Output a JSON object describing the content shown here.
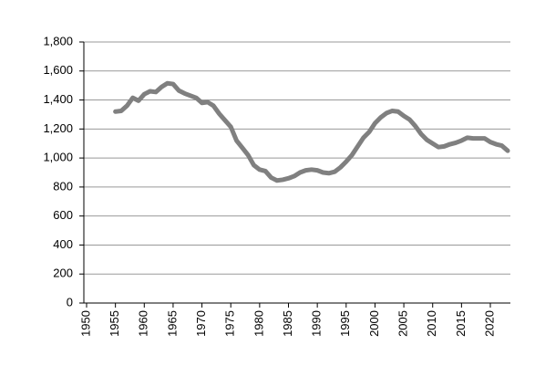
{
  "chart_data": {
    "type": "line",
    "x": [
      1955,
      1956,
      1957,
      1958,
      1959,
      1960,
      1961,
      1962,
      1963,
      1964,
      1965,
      1966,
      1967,
      1968,
      1969,
      1970,
      1971,
      1972,
      1973,
      1974,
      1975,
      1976,
      1977,
      1978,
      1979,
      1980,
      1981,
      1982,
      1983,
      1984,
      1985,
      1986,
      1987,
      1988,
      1989,
      1990,
      1991,
      1992,
      1993,
      1994,
      1995,
      1996,
      1997,
      1998,
      1999,
      2000,
      2001,
      2002,
      2003,
      2004,
      2005,
      2006,
      2007,
      2008,
      2009,
      2010,
      2011,
      2012,
      2013,
      2014,
      2015,
      2016,
      2017,
      2018,
      2019,
      2020,
      2021,
      2022,
      2023
    ],
    "values": [
      1320,
      1325,
      1360,
      1415,
      1395,
      1440,
      1460,
      1455,
      1490,
      1515,
      1510,
      1465,
      1445,
      1430,
      1415,
      1380,
      1385,
      1360,
      1305,
      1260,
      1215,
      1120,
      1070,
      1020,
      950,
      920,
      910,
      865,
      845,
      850,
      860,
      875,
      900,
      915,
      920,
      915,
      900,
      895,
      905,
      935,
      975,
      1020,
      1080,
      1140,
      1180,
      1240,
      1280,
      1310,
      1325,
      1320,
      1290,
      1265,
      1220,
      1165,
      1125,
      1100,
      1075,
      1080,
      1095,
      1105,
      1120,
      1140,
      1135,
      1135,
      1135,
      1110,
      1095,
      1085,
      1050
    ],
    "color": "#808080",
    "xlim": [
      1950,
      2023
    ],
    "xticks": [
      1950,
      1955,
      1960,
      1965,
      1970,
      1975,
      1980,
      1985,
      1990,
      1995,
      2000,
      2005,
      2010,
      2015,
      2020
    ],
    "ylim": [
      0,
      1800
    ],
    "yticks": [
      0,
      200,
      400,
      600,
      800,
      {
        "value": 1000,
        "label": "1,000"
      },
      {
        "value": 1200,
        "label": "1,200"
      },
      {
        "value": 1400,
        "label": "1,400"
      },
      {
        "value": 1600,
        "label": "1,600"
      },
      {
        "value": 1800,
        "label": "1,800"
      }
    ],
    "grid": true
  }
}
